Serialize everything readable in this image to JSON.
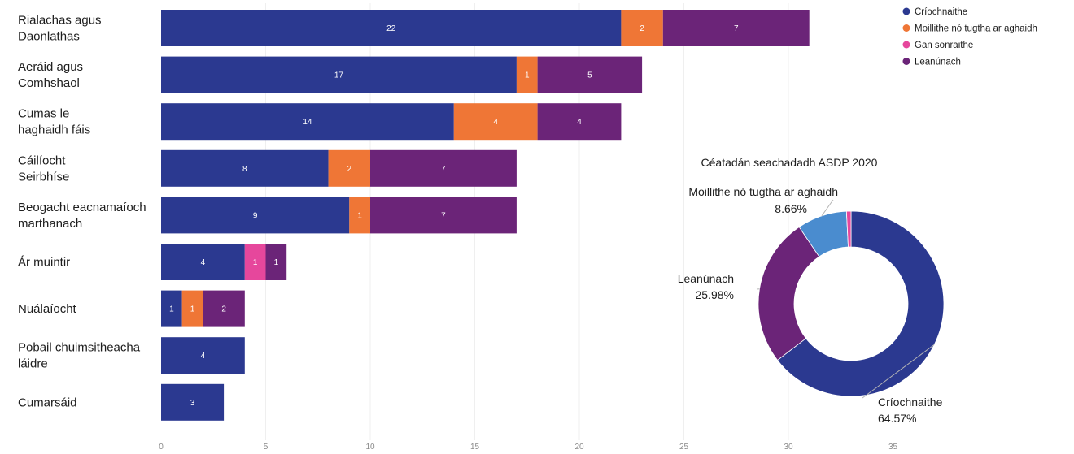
{
  "chart_data": [
    {
      "type": "bar",
      "orientation": "horizontal",
      "stacked": true,
      "categories": [
        [
          "Rialachas agus",
          "Daonlathas"
        ],
        [
          "Aeráid agus",
          "Comhshaol"
        ],
        [
          "Cumas le",
          "haghaidh fáis"
        ],
        [
          "Cáilíocht",
          "Seirbhíse"
        ],
        [
          "Beogacht eacnamaíoch",
          "marthanach"
        ],
        [
          "Ár muintir"
        ],
        [
          "Nuálaíocht"
        ],
        [
          "Pobail chuimsitheacha",
          "láidre"
        ],
        [
          "Cumarsáid"
        ]
      ],
      "series": [
        {
          "name": "Críochnaithe",
          "values": [
            22,
            17,
            14,
            8,
            9,
            4,
            1,
            4,
            3
          ]
        },
        {
          "name": "Moillithe nó tugtha ar aghaidh",
          "values": [
            2,
            1,
            4,
            2,
            1,
            0,
            1,
            0,
            0
          ]
        },
        {
          "name": "Gan sonraithe",
          "values": [
            0,
            0,
            0,
            0,
            0,
            1,
            0,
            0,
            0
          ]
        },
        {
          "name": "Leanúnach",
          "values": [
            7,
            5,
            4,
            7,
            7,
            1,
            2,
            0,
            0
          ]
        }
      ],
      "colors": [
        "#2b3990",
        "#ef7636",
        "#e6479c",
        "#6b2478"
      ],
      "xlim": [
        0,
        35
      ],
      "xticks": [
        0,
        5,
        10,
        15,
        20,
        25,
        30,
        35
      ],
      "legend_position": "top-right",
      "grid": true
    },
    {
      "type": "pie",
      "donut": true,
      "title": "Céatadán seachadadh ASDP 2020",
      "slices": [
        {
          "name": "Críochnaithe",
          "value": 64.57,
          "display": "64.57%",
          "color": "#2b3990"
        },
        {
          "name": "Leanúnach",
          "value": 25.98,
          "display": "25.98%",
          "color": "#6b2478"
        },
        {
          "name": "Moillithe nó tugtha ar aghaidh",
          "value": 8.66,
          "display": "8.66%",
          "color": "#4a8ccf"
        },
        {
          "name": "Gan sonraithe",
          "value": 0.79,
          "display": "",
          "color": "#e6479c"
        }
      ]
    }
  ]
}
